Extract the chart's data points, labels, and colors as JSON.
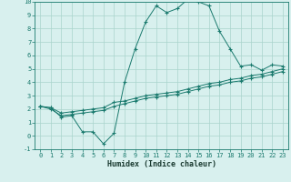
{
  "xlabel": "Humidex (Indice chaleur)",
  "x_values": [
    0,
    1,
    2,
    3,
    4,
    5,
    6,
    7,
    8,
    9,
    10,
    11,
    12,
    13,
    14,
    15,
    16,
    17,
    18,
    19,
    20,
    21,
    22,
    23
  ],
  "line1_y": [
    2.2,
    2.1,
    1.4,
    1.5,
    0.3,
    0.3,
    -0.6,
    0.2,
    4.0,
    6.5,
    8.5,
    9.7,
    9.2,
    9.5,
    10.2,
    10.0,
    9.7,
    7.8,
    6.5,
    5.2,
    5.3,
    4.9,
    5.3,
    5.2
  ],
  "line2_y": [
    2.2,
    2.1,
    1.7,
    1.8,
    1.9,
    2.0,
    2.1,
    2.5,
    2.6,
    2.8,
    3.0,
    3.1,
    3.2,
    3.3,
    3.5,
    3.7,
    3.9,
    4.0,
    4.2,
    4.3,
    4.5,
    4.6,
    4.8,
    5.0
  ],
  "line3_y": [
    2.2,
    2.0,
    1.5,
    1.6,
    1.7,
    1.8,
    1.9,
    2.2,
    2.4,
    2.6,
    2.8,
    2.9,
    3.0,
    3.1,
    3.3,
    3.5,
    3.7,
    3.8,
    4.0,
    4.1,
    4.3,
    4.4,
    4.6,
    4.8
  ],
  "line_color": "#1a7a6e",
  "bg_color": "#d8f0ee",
  "grid_color": "#aad4cc",
  "ylim": [
    -1,
    10
  ],
  "xlim": [
    -0.5,
    23.5
  ],
  "yticks": [
    -1,
    0,
    1,
    2,
    3,
    4,
    5,
    6,
    7,
    8,
    9,
    10
  ],
  "xticks": [
    0,
    1,
    2,
    3,
    4,
    5,
    6,
    7,
    8,
    9,
    10,
    11,
    12,
    13,
    14,
    15,
    16,
    17,
    18,
    19,
    20,
    21,
    22,
    23
  ],
  "tick_fontsize": 5.0,
  "xlabel_fontsize": 6.0,
  "marker_size": 2.5,
  "linewidth": 0.7
}
